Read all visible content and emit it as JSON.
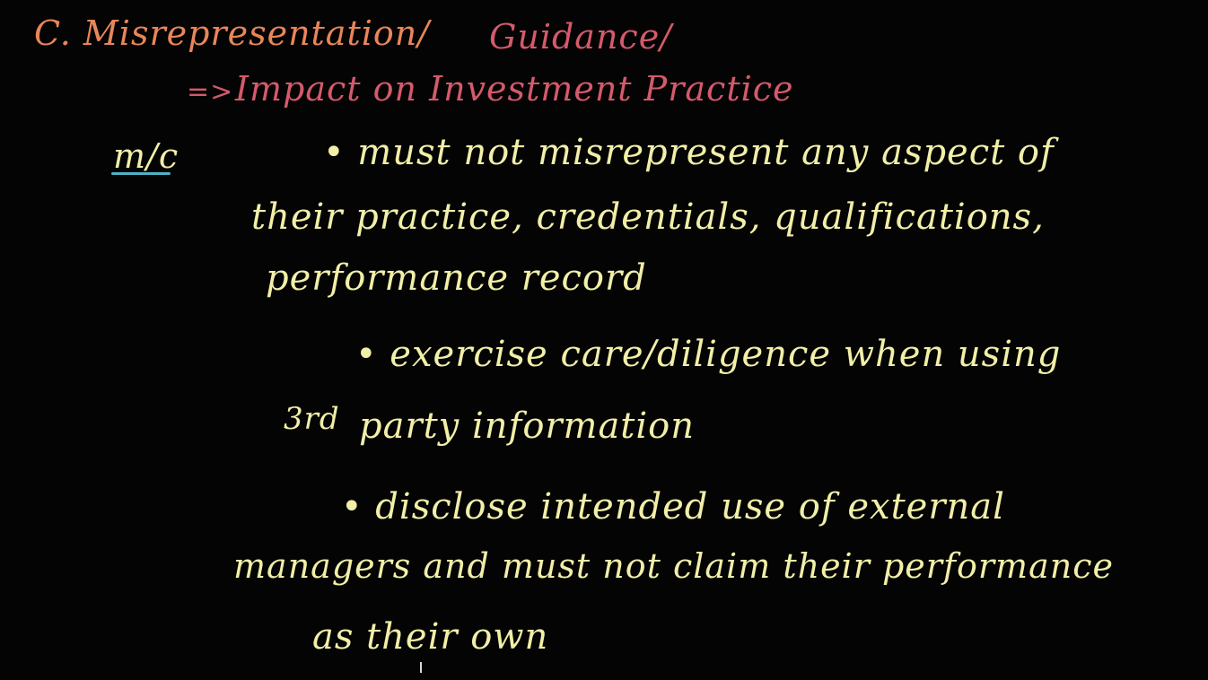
{
  "heading": {
    "part1": "C. Misrepresentation/",
    "part2": "Guidance/"
  },
  "subheading": {
    "arrow": "=>",
    "text": "Impact on Investment Practice"
  },
  "label": "m/c",
  "bullets": [
    {
      "line1": "• must not misrepresent any aspect of",
      "line2": "their practice, credentials, qualifications,",
      "line3": "performance record"
    },
    {
      "line1": "• exercise care/diligence when using",
      "prefix": "3rd",
      "line2": "party information"
    },
    {
      "line1": "• disclose intended use of external",
      "line2": "managers and must not claim their performance",
      "line3": "as their own"
    }
  ],
  "colors": {
    "background": "#050404",
    "heading_orange": "#e8865a",
    "heading_pink": "#d45a6c",
    "body_cream": "#f1efa8",
    "underline_blue": "#4fb3c9"
  }
}
